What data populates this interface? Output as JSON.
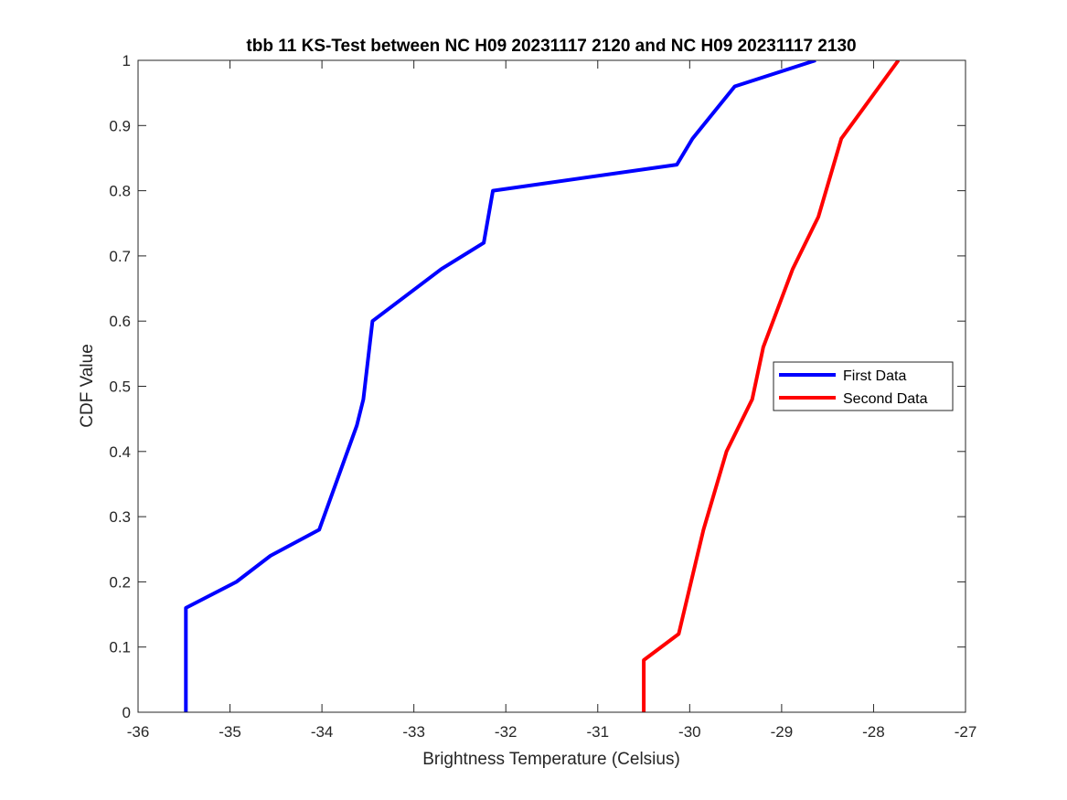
{
  "chart_data": {
    "type": "line",
    "title": "tbb 11 KS-Test between NC H09 20231117 2120 and NC H09 20231117 2130",
    "xlabel": "Brightness Temperature (Celsius)",
    "ylabel": "CDF Value",
    "xlim": [
      -36,
      -27
    ],
    "ylim": [
      0,
      1
    ],
    "xticks": [
      -36,
      -35,
      -34,
      -33,
      -32,
      -31,
      -30,
      -29,
      -28,
      -27
    ],
    "yticks": [
      0,
      0.1,
      0.2,
      0.3,
      0.4,
      0.5,
      0.6,
      0.7,
      0.8,
      0.9,
      1
    ],
    "grid": false,
    "legend_position": "right",
    "series": [
      {
        "name": "First Data",
        "color": "#0000ff",
        "x": [
          -35.48,
          -35.48,
          -35.48,
          -34.93,
          -34.56,
          -34.03,
          -33.62,
          -33.55,
          -33.45,
          -32.7,
          -32.24,
          -32.14,
          -30.14,
          -29.97,
          -29.51,
          -28.63
        ],
        "y": [
          0,
          0.08,
          0.16,
          0.2,
          0.24,
          0.28,
          0.44,
          0.48,
          0.6,
          0.68,
          0.72,
          0.8,
          0.84,
          0.88,
          0.96,
          1
        ]
      },
      {
        "name": "Second Data",
        "color": "#ff0000",
        "x": [
          -30.5,
          -30.5,
          -30.12,
          -29.85,
          -29.6,
          -29.32,
          -29.2,
          -28.88,
          -28.6,
          -28.35,
          -27.73
        ],
        "y": [
          0,
          0.08,
          0.12,
          0.28,
          0.4,
          0.48,
          0.56,
          0.68,
          0.76,
          0.88,
          1
        ]
      }
    ]
  }
}
